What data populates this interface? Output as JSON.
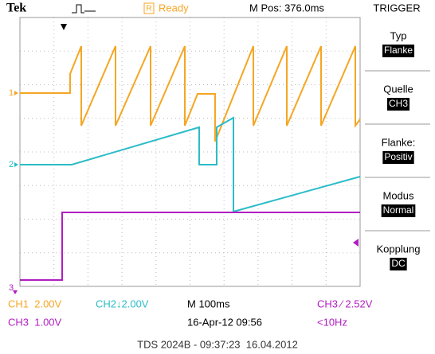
{
  "header": {
    "brand": "Tek",
    "status_icon": "R",
    "status": "Ready",
    "position": "M Pos: 376.0ms",
    "menu_title": "TRIGGER"
  },
  "markers": {
    "ch1": "1",
    "ch2": "2",
    "ch3": "3"
  },
  "menu": [
    {
      "label": "Typ",
      "value": "Flanke"
    },
    {
      "label": "Quelle",
      "value": "CH3"
    },
    {
      "label": "Flanke:",
      "value": "Positiv"
    },
    {
      "label": "Modus",
      "value": "Normal"
    },
    {
      "label": "Kopplung",
      "value": "DC"
    }
  ],
  "status_bar": {
    "ch1": "CH1  2.00V",
    "ch2": "CH2↓2.00V",
    "timebase": "M 100ms",
    "trigger": "CH3 ⁄ 2.52V",
    "ch3": "CH3  1.00V",
    "date": "16-Apr-12 09:56",
    "frequency": "<10Hz"
  },
  "caption": "TDS 2024B - 09:37:23  16.04.2012"
}
